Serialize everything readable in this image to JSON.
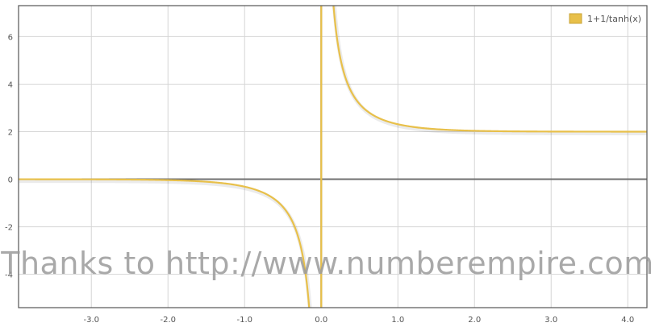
{
  "chart_data": {
    "type": "line",
    "function": "1+1/tanh(x)",
    "xlim": [
      -3.95,
      4.25
    ],
    "ylim": [
      -5.4,
      7.3
    ],
    "x_ticks": [
      -3.0,
      -2.0,
      -1.0,
      0.0,
      1.0,
      2.0,
      3.0,
      4.0
    ],
    "x_tick_labels": [
      "-3.0",
      "-2.0",
      "-1.0",
      "0.0",
      "1.0",
      "2.0",
      "3.0",
      "4.0"
    ],
    "y_ticks": [
      -4,
      -2,
      0,
      2,
      4,
      6
    ],
    "y_tick_labels": [
      "-4",
      "-2",
      "0",
      "2",
      "4",
      "6"
    ],
    "grid": true,
    "legend_position": "top-right",
    "series": [
      {
        "name": "1+1/tanh(x)",
        "color": "#e8c04a",
        "left_branch": {
          "x": [
            -3.95,
            -3.5,
            -3.0,
            -2.5,
            -2.0,
            -1.75,
            -1.5,
            -1.25,
            -1.0,
            -0.8,
            -0.6,
            -0.5,
            -0.4,
            -0.3,
            -0.25,
            -0.2,
            -0.18,
            -0.16
          ],
          "y": [
            -0.001,
            -0.002,
            -0.005,
            -0.013,
            -0.037,
            -0.062,
            -0.104,
            -0.179,
            -0.313,
            -0.506,
            -0.862,
            -1.164,
            -1.632,
            -2.436,
            -3.083,
            -3.934,
            -4.426,
            -5.05
          ]
        },
        "right_branch": {
          "x": [
            0.145,
            0.16,
            0.18,
            0.2,
            0.25,
            0.3,
            0.4,
            0.5,
            0.6,
            0.8,
            1.0,
            1.25,
            1.5,
            2.0,
            2.5,
            3.0,
            3.5,
            4.0,
            4.25
          ],
          "y": [
            7.944,
            7.303,
            6.611,
            5.934,
            5.083,
            4.436,
            3.632,
            3.164,
            2.862,
            2.506,
            2.313,
            2.179,
            2.104,
            2.037,
            2.013,
            2.005,
            2.002,
            2.001,
            2.0
          ]
        }
      }
    ]
  },
  "watermark": "Thanks to http://www.numberempire.com"
}
